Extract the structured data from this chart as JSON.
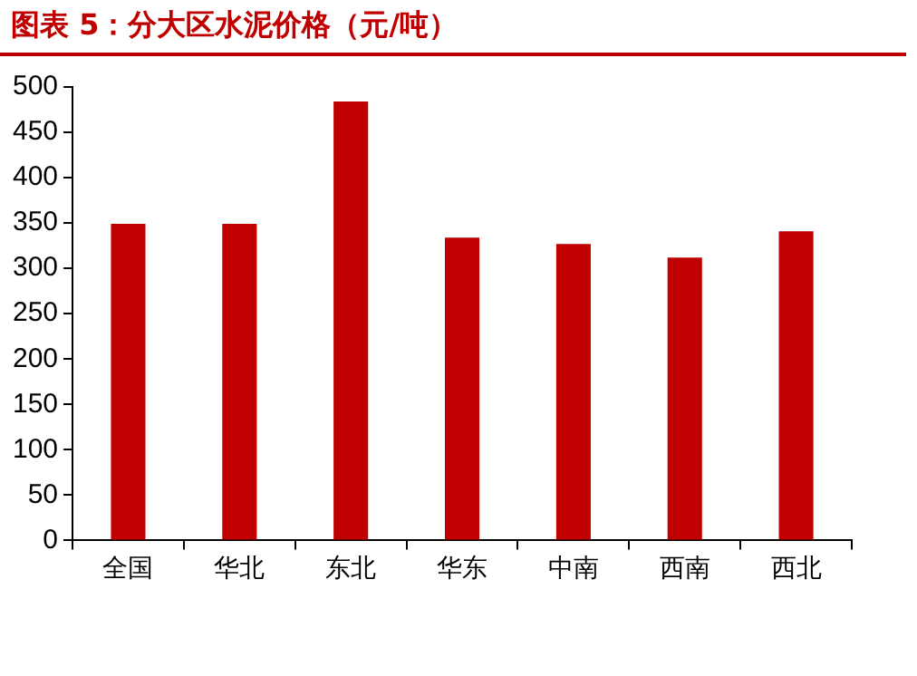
{
  "chart_data": {
    "type": "bar",
    "title": "图表 5：分大区水泥价格（元/吨）",
    "categories": [
      "全国",
      "华北",
      "东北",
      "华东",
      "中南",
      "西南",
      "西北"
    ],
    "values": [
      349,
      349,
      484,
      334,
      327,
      312,
      341
    ],
    "color": "#c00000",
    "ylim": [
      0,
      500
    ],
    "yticks": [
      0,
      50,
      100,
      150,
      200,
      250,
      300,
      350,
      400,
      450,
      500
    ],
    "grid": false,
    "legend": false
  }
}
